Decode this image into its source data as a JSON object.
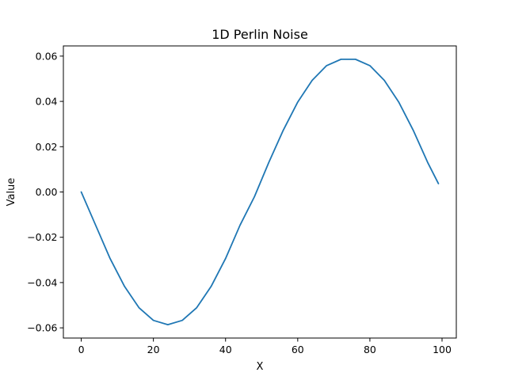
{
  "chart_data": {
    "type": "line",
    "title": "1D Perlin Noise",
    "xlabel": "X",
    "ylabel": "Value",
    "xlim": [
      -4.95,
      103.95
    ],
    "ylim": [
      -0.0645,
      0.0645
    ],
    "xticks": [
      0,
      20,
      40,
      60,
      80,
      100
    ],
    "yticks": [
      -0.06,
      -0.04,
      -0.02,
      0.0,
      0.02,
      0.04,
      0.06
    ],
    "ytick_labels": [
      "−0.06",
      "−0.04",
      "−0.02",
      "0.00",
      "0.02",
      "0.04",
      "0.06"
    ],
    "grid": false,
    "legend": "none",
    "series": [
      {
        "color": "#1f77b4",
        "x": [
          0,
          4,
          8,
          12,
          16,
          20,
          24,
          28,
          32,
          36,
          40,
          44,
          48,
          52,
          56,
          60,
          64,
          68,
          72,
          76,
          80,
          84,
          88,
          92,
          96,
          99
        ],
        "y": [
          0.0,
          -0.0147,
          -0.0294,
          -0.0417,
          -0.0511,
          -0.0567,
          -0.0586,
          -0.0567,
          -0.0511,
          -0.0417,
          -0.0294,
          -0.0147,
          -0.0021,
          0.0131,
          0.0273,
          0.0397,
          0.0493,
          0.0558,
          0.0586,
          0.0586,
          0.0558,
          0.0493,
          0.0397,
          0.0273,
          0.0131,
          0.0037
        ]
      }
    ]
  }
}
